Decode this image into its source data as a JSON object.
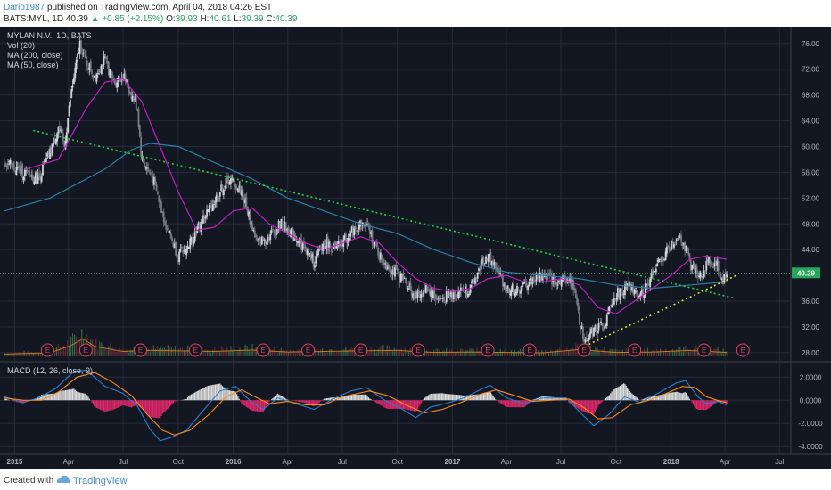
{
  "header": {
    "author": "Dario1987",
    "published": "published on TradingView.com, April 04, 2018 04:26 EST",
    "symbol": "BATS:MYL, 1D",
    "last": "40.39",
    "change": "▲ +0.85 (+2.15%)",
    "ohlc": {
      "o_label": "O:",
      "o": "39.93",
      "h_label": "H:",
      "h": "40.61",
      "l_label": "L:",
      "l": "39.39",
      "c_label": "C:",
      "c": "40.39"
    }
  },
  "legend": {
    "title": "MYLAN N.V., 1D, BATS",
    "vol": "Vol (20)",
    "ma200": "MA (200, close)",
    "ma50": "MA (50, close)",
    "macd": "MACD (12, 26, close, 9)"
  },
  "footer": {
    "created": "Created with",
    "brand": "TradingView"
  },
  "colors": {
    "background": "#131722",
    "grid": "#262b3a",
    "candle_up": "#d1d4dc",
    "candle_down": "#787b86",
    "ma200": "#2e7ea6",
    "ma50": "#c020c0",
    "trend_green": "#26d53a",
    "trend_yellow": "#e3e33a",
    "volume": "#8a5a1a",
    "macd_line": "#2a7fd4",
    "signal_line": "#ff8c1a",
    "hist_pos": "#e0e0e0",
    "hist_neg": "#e0286a",
    "price_tag": "#26a65b"
  },
  "chart_data": {
    "type": "candlestick",
    "x_axis": {
      "range": [
        "2014-12-15",
        "2018-07-20"
      ],
      "ticks": [
        {
          "date": "2015-01-01",
          "label": "2015",
          "bold": true
        },
        {
          "date": "2015-04-01",
          "label": "Apr"
        },
        {
          "date": "2015-07-01",
          "label": "Jul"
        },
        {
          "date": "2015-10-01",
          "label": "Oct"
        },
        {
          "date": "2016-01-01",
          "label": "2016",
          "bold": true
        },
        {
          "date": "2016-04-01",
          "label": "Apr"
        },
        {
          "date": "2016-07-01",
          "label": "Jul"
        },
        {
          "date": "2016-10-01",
          "label": "Oct"
        },
        {
          "date": "2017-01-01",
          "label": "2017",
          "bold": true
        },
        {
          "date": "2017-04-01",
          "label": "Apr"
        },
        {
          "date": "2017-07-01",
          "label": "Jul"
        },
        {
          "date": "2017-10-01",
          "label": "Oct"
        },
        {
          "date": "2018-01-01",
          "label": "2018",
          "bold": true
        },
        {
          "date": "2018-04-01",
          "label": "Apr"
        },
        {
          "date": "2018-07-01",
          "label": "Jul"
        }
      ]
    },
    "price_axis": {
      "range": [
        26.6,
        78.6
      ],
      "ticks": [
        "76.00",
        "72.00",
        "68.00",
        "64.00",
        "60.00",
        "56.00",
        "52.00",
        "48.00",
        "44.00",
        "36.00",
        "32.00",
        "28.00"
      ],
      "last_price": "40.39"
    },
    "macd_axis": {
      "range": [
        -4.6,
        3.1
      ],
      "ticks": [
        "2.0000",
        "0.0000",
        "-2.0000",
        "-4.0000"
      ]
    },
    "price_path": [
      [
        "2014-12-15",
        57.5
      ],
      [
        "2015-01-15",
        56
      ],
      [
        "2015-02-10",
        55
      ],
      [
        "2015-03-01",
        59
      ],
      [
        "2015-03-15",
        63
      ],
      [
        "2015-03-25",
        60
      ],
      [
        "2015-04-05",
        68
      ],
      [
        "2015-04-20",
        76
      ],
      [
        "2015-05-01",
        73
      ],
      [
        "2015-05-15",
        71
      ],
      [
        "2015-06-01",
        73.5
      ],
      [
        "2015-06-15",
        70
      ],
      [
        "2015-07-01",
        71
      ],
      [
        "2015-07-15",
        68
      ],
      [
        "2015-07-25",
        66
      ],
      [
        "2015-08-01",
        58
      ],
      [
        "2015-08-20",
        55
      ],
      [
        "2015-09-10",
        48
      ],
      [
        "2015-10-01",
        43
      ],
      [
        "2015-10-15",
        44
      ],
      [
        "2015-11-01",
        47
      ],
      [
        "2015-11-20",
        50
      ],
      [
        "2015-12-10",
        53
      ],
      [
        "2015-12-25",
        55
      ],
      [
        "2016-01-15",
        53
      ],
      [
        "2016-02-10",
        45
      ],
      [
        "2016-03-01",
        46
      ],
      [
        "2016-03-20",
        48
      ],
      [
        "2016-04-15",
        46
      ],
      [
        "2016-05-01",
        44
      ],
      [
        "2016-05-15",
        42
      ],
      [
        "2016-06-01",
        45
      ],
      [
        "2016-06-20",
        44
      ],
      [
        "2016-07-10",
        46
      ],
      [
        "2016-08-01",
        48
      ],
      [
        "2016-08-15",
        47
      ],
      [
        "2016-09-01",
        43
      ],
      [
        "2016-09-20",
        41
      ],
      [
        "2016-10-15",
        39
      ],
      [
        "2016-11-01",
        36.5
      ],
      [
        "2016-11-20",
        38
      ],
      [
        "2016-12-10",
        36
      ],
      [
        "2016-12-25",
        37
      ],
      [
        "2017-01-15",
        37.5
      ],
      [
        "2017-02-01",
        38
      ],
      [
        "2017-02-20",
        42
      ],
      [
        "2017-03-01",
        43
      ],
      [
        "2017-03-15",
        41
      ],
      [
        "2017-04-01",
        38
      ],
      [
        "2017-04-20",
        37.5
      ],
      [
        "2017-05-10",
        39
      ],
      [
        "2017-06-01",
        40
      ],
      [
        "2017-06-20",
        39
      ],
      [
        "2017-07-10",
        39.5
      ],
      [
        "2017-07-25",
        38
      ],
      [
        "2017-08-01",
        33
      ],
      [
        "2017-08-10",
        30
      ],
      [
        "2017-08-25",
        31.5
      ],
      [
        "2017-09-15",
        33
      ],
      [
        "2017-10-01",
        37
      ],
      [
        "2017-10-20",
        38
      ],
      [
        "2017-11-10",
        37
      ],
      [
        "2017-12-01",
        40
      ],
      [
        "2017-12-20",
        43
      ],
      [
        "2018-01-05",
        45
      ],
      [
        "2018-01-15",
        46.5
      ],
      [
        "2018-01-25",
        44
      ],
      [
        "2018-02-05",
        41
      ],
      [
        "2018-02-20",
        40
      ],
      [
        "2018-03-05",
        42
      ],
      [
        "2018-03-20",
        41.5
      ],
      [
        "2018-03-28",
        39
      ],
      [
        "2018-04-04",
        40.39
      ]
    ],
    "ma50_path": [
      [
        "2015-01-20",
        56.5
      ],
      [
        "2015-03-15",
        58
      ],
      [
        "2015-05-01",
        66
      ],
      [
        "2015-06-01",
        70
      ],
      [
        "2015-07-01",
        70.5
      ],
      [
        "2015-08-01",
        67
      ],
      [
        "2015-09-01",
        60
      ],
      [
        "2015-10-01",
        53
      ],
      [
        "2015-11-01",
        47
      ],
      [
        "2015-12-01",
        47.5
      ],
      [
        "2016-01-01",
        50
      ],
      [
        "2016-02-01",
        50.5
      ],
      [
        "2016-03-01",
        48
      ],
      [
        "2016-04-01",
        46.5
      ],
      [
        "2016-05-01",
        45
      ],
      [
        "2016-06-01",
        44
      ],
      [
        "2016-07-01",
        45
      ],
      [
        "2016-08-01",
        46
      ],
      [
        "2016-09-01",
        45
      ],
      [
        "2016-10-01",
        42
      ],
      [
        "2016-11-01",
        39.5
      ],
      [
        "2016-12-01",
        38
      ],
      [
        "2017-01-01",
        37.5
      ],
      [
        "2017-02-01",
        38
      ],
      [
        "2017-03-01",
        39.5
      ],
      [
        "2017-04-01",
        40
      ],
      [
        "2017-05-01",
        39
      ],
      [
        "2017-06-01",
        39
      ],
      [
        "2017-07-01",
        39.5
      ],
      [
        "2017-08-01",
        38.5
      ],
      [
        "2017-09-01",
        35
      ],
      [
        "2017-10-01",
        34
      ],
      [
        "2017-11-01",
        36
      ],
      [
        "2017-12-01",
        38
      ],
      [
        "2018-01-01",
        40
      ],
      [
        "2018-02-01",
        42.5
      ],
      [
        "2018-03-01",
        43
      ],
      [
        "2018-04-04",
        42.5
      ]
    ],
    "ma200_path": [
      [
        "2014-12-15",
        50
      ],
      [
        "2015-03-01",
        52
      ],
      [
        "2015-06-01",
        56.5
      ],
      [
        "2015-07-15",
        59.5
      ],
      [
        "2015-08-15",
        60.5
      ],
      [
        "2015-10-01",
        60
      ],
      [
        "2015-12-01",
        57.5
      ],
      [
        "2016-02-01",
        55
      ],
      [
        "2016-04-01",
        52
      ],
      [
        "2016-06-01",
        50
      ],
      [
        "2016-08-01",
        48
      ],
      [
        "2016-10-01",
        46.5
      ],
      [
        "2016-12-01",
        44
      ],
      [
        "2017-02-01",
        42
      ],
      [
        "2017-04-01",
        40.5
      ],
      [
        "2017-06-01",
        40
      ],
      [
        "2017-08-01",
        39.5
      ],
      [
        "2017-10-01",
        38.5
      ],
      [
        "2017-12-01",
        38
      ],
      [
        "2018-02-01",
        38.5
      ],
      [
        "2018-04-04",
        39
      ]
    ],
    "trendlines": [
      {
        "name": "downtrend",
        "color": "#26d53a",
        "points": [
          [
            "2015-02-01",
            62.5
          ],
          [
            "2018-04-15",
            36.5
          ]
        ]
      },
      {
        "name": "uptrend",
        "color": "#e3e33a",
        "points": [
          [
            "2017-08-10",
            29
          ],
          [
            "2018-04-20",
            40
          ]
        ]
      }
    ],
    "earnings_markers": {
      "label": "E",
      "dates": [
        "2015-02-25",
        "2015-04-30",
        "2015-07-30",
        "2015-10-30",
        "2016-02-20",
        "2016-05-05",
        "2016-08-01",
        "2016-11-05",
        "2017-03-01",
        "2017-05-10",
        "2017-08-09",
        "2017-11-01",
        "2018-02-25",
        "2018-05-01"
      ]
    },
    "macd_path": [
      [
        "2014-12-15",
        0.3
      ],
      [
        "2015-01-15",
        -0.2
      ],
      [
        "2015-02-10",
        0.2
      ],
      [
        "2015-03-10",
        1
      ],
      [
        "2015-04-10",
        2.5
      ],
      [
        "2015-05-01",
        2.6
      ],
      [
        "2015-06-01",
        1.2
      ],
      [
        "2015-07-01",
        0.6
      ],
      [
        "2015-07-25",
        -0.5
      ],
      [
        "2015-08-15",
        -2.5
      ],
      [
        "2015-09-01",
        -3.5
      ],
      [
        "2015-09-20",
        -3.2
      ],
      [
        "2015-10-15",
        -2.6
      ],
      [
        "2015-11-10",
        -1
      ],
      [
        "2015-12-10",
        0.8
      ],
      [
        "2016-01-05",
        1.2
      ],
      [
        "2016-02-01",
        -0.2
      ],
      [
        "2016-02-20",
        -0.8
      ],
      [
        "2016-03-15",
        0.2
      ],
      [
        "2016-04-15",
        -0.3
      ],
      [
        "2016-05-15",
        -0.8
      ],
      [
        "2016-06-15",
        0.1
      ],
      [
        "2016-07-15",
        0.8
      ],
      [
        "2016-08-10",
        1.1
      ],
      [
        "2016-09-10",
        0
      ],
      [
        "2016-10-10",
        -0.8
      ],
      [
        "2016-11-01",
        -1.5
      ],
      [
        "2016-11-25",
        -0.6
      ],
      [
        "2016-12-20",
        -0.3
      ],
      [
        "2017-01-20",
        0.2
      ],
      [
        "2017-02-20",
        1
      ],
      [
        "2017-03-05",
        1.3
      ],
      [
        "2017-04-01",
        0.2
      ],
      [
        "2017-05-01",
        -0.3
      ],
      [
        "2017-06-01",
        0.2
      ],
      [
        "2017-07-10",
        0.2
      ],
      [
        "2017-08-05",
        -1.2
      ],
      [
        "2017-08-25",
        -2.2
      ],
      [
        "2017-09-20",
        -1.2
      ],
      [
        "2017-10-15",
        0.3
      ],
      [
        "2017-11-10",
        -0.2
      ],
      [
        "2017-12-10",
        0.6
      ],
      [
        "2018-01-10",
        1.5
      ],
      [
        "2018-01-25",
        1.7
      ],
      [
        "2018-02-15",
        0.3
      ],
      [
        "2018-03-01",
        -0.3
      ],
      [
        "2018-03-20",
        -0.1
      ],
      [
        "2018-04-04",
        -0.4
      ]
    ],
    "signal_path": [
      [
        "2014-12-15",
        0.2
      ],
      [
        "2015-01-15",
        0
      ],
      [
        "2015-02-15",
        0
      ],
      [
        "2015-03-15",
        0.7
      ],
      [
        "2015-04-15",
        2
      ],
      [
        "2015-05-15",
        2.4
      ],
      [
        "2015-06-15",
        1.5
      ],
      [
        "2015-07-15",
        0.4
      ],
      [
        "2015-08-10",
        -1.2
      ],
      [
        "2015-09-05",
        -2.6
      ],
      [
        "2015-09-25",
        -3
      ],
      [
        "2015-10-20",
        -2.6
      ],
      [
        "2015-11-20",
        -1.3
      ],
      [
        "2015-12-20",
        0.3
      ],
      [
        "2016-01-15",
        0.9
      ],
      [
        "2016-02-10",
        0.2
      ],
      [
        "2016-03-01",
        -0.3
      ],
      [
        "2016-04-01",
        -0.1
      ],
      [
        "2016-05-01",
        -0.4
      ],
      [
        "2016-06-01",
        -0.4
      ],
      [
        "2016-07-01",
        0.3
      ],
      [
        "2016-08-15",
        0.8
      ],
      [
        "2016-09-15",
        0.4
      ],
      [
        "2016-10-15",
        -0.4
      ],
      [
        "2016-11-15",
        -1.1
      ],
      [
        "2016-12-15",
        -0.8
      ],
      [
        "2017-01-15",
        -0.2
      ],
      [
        "2017-02-15",
        0.5
      ],
      [
        "2017-03-15",
        0.9
      ],
      [
        "2017-04-15",
        0.4
      ],
      [
        "2017-05-15",
        -0.1
      ],
      [
        "2017-06-15",
        0
      ],
      [
        "2017-07-15",
        0.1
      ],
      [
        "2017-08-10",
        -0.7
      ],
      [
        "2017-09-01",
        -1.6
      ],
      [
        "2017-09-25",
        -1.5
      ],
      [
        "2017-10-25",
        -0.4
      ],
      [
        "2017-11-25",
        0
      ],
      [
        "2017-12-20",
        0.5
      ],
      [
        "2018-01-20",
        1.2
      ],
      [
        "2018-02-10",
        1.1
      ],
      [
        "2018-03-01",
        0.3
      ],
      [
        "2018-03-25",
        -0.1
      ],
      [
        "2018-04-04",
        -0.2
      ]
    ],
    "volume_path": [
      [
        "2014-12-15",
        0.12
      ],
      [
        "2015-03-01",
        0.18
      ],
      [
        "2015-04-05",
        0.55
      ],
      [
        "2015-04-25",
        0.9
      ],
      [
        "2015-05-15",
        0.5
      ],
      [
        "2015-07-01",
        0.25
      ],
      [
        "2015-08-15",
        0.3
      ],
      [
        "2015-10-01",
        0.28
      ],
      [
        "2015-12-01",
        0.25
      ],
      [
        "2016-02-01",
        0.32
      ],
      [
        "2016-04-01",
        0.22
      ],
      [
        "2016-06-01",
        0.25
      ],
      [
        "2016-08-01",
        0.28
      ],
      [
        "2016-10-01",
        0.3
      ],
      [
        "2016-12-01",
        0.2
      ],
      [
        "2017-02-01",
        0.22
      ],
      [
        "2017-04-01",
        0.2
      ],
      [
        "2017-06-01",
        0.18
      ],
      [
        "2017-08-01",
        0.35
      ],
      [
        "2017-08-20",
        0.3
      ],
      [
        "2017-10-01",
        0.2
      ],
      [
        "2017-12-01",
        0.22
      ],
      [
        "2018-02-01",
        0.3
      ],
      [
        "2018-04-04",
        0.2
      ]
    ]
  }
}
